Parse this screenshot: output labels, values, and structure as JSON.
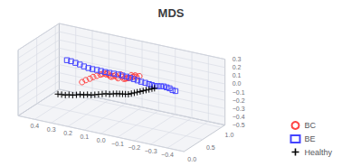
{
  "chart_data": {
    "type": "scatter3d",
    "title": "MDS",
    "series": [
      {
        "name": "BC",
        "color": "#ff4444",
        "marker": "circle",
        "values": [
          [
            -0.22,
            0.05,
            0.28
          ],
          [
            -0.2,
            0.06,
            0.26
          ],
          [
            -0.19,
            0.07,
            0.27
          ],
          [
            -0.18,
            0.08,
            0.25
          ],
          [
            -0.17,
            0.09,
            0.24
          ],
          [
            -0.16,
            0.1,
            0.25
          ],
          [
            -0.15,
            0.08,
            0.22
          ],
          [
            -0.14,
            0.09,
            0.21
          ],
          [
            -0.13,
            0.1,
            0.2
          ],
          [
            -0.12,
            0.11,
            0.19
          ],
          [
            -0.11,
            0.12,
            0.18
          ],
          [
            -0.1,
            0.12,
            0.2
          ],
          [
            -0.09,
            0.13,
            0.22
          ],
          [
            -0.08,
            0.1,
            0.18
          ],
          [
            -0.07,
            0.11,
            0.19
          ],
          [
            -0.06,
            0.12,
            0.2
          ],
          [
            -0.05,
            0.11,
            0.19
          ],
          [
            -0.04,
            0.1,
            0.18
          ],
          [
            -0.03,
            0.11,
            0.18
          ],
          [
            -0.02,
            0.12,
            0.19
          ],
          [
            -0.01,
            0.13,
            0.2
          ],
          [
            0.0,
            0.14,
            0.18
          ],
          [
            0.01,
            0.14,
            0.19
          ],
          [
            0.02,
            0.13,
            0.18
          ],
          [
            0.03,
            0.12,
            0.17
          ],
          [
            0.05,
            0.11,
            0.15
          ],
          [
            0.07,
            0.1,
            0.13
          ],
          [
            0.09,
            0.1,
            0.1
          ],
          [
            0.11,
            0.08,
            0.08
          ],
          [
            0.13,
            0.07,
            0.05
          ]
        ]
      },
      {
        "name": "BE",
        "color": "#4444ff",
        "marker": "square",
        "values": [
          [
            -0.28,
            0.75,
            -0.08
          ],
          [
            -0.26,
            0.76,
            -0.08
          ],
          [
            -0.24,
            0.77,
            -0.07
          ],
          [
            -0.22,
            0.78,
            -0.07
          ],
          [
            -0.2,
            0.79,
            -0.07
          ],
          [
            -0.18,
            0.8,
            -0.08
          ],
          [
            -0.16,
            0.81,
            -0.09
          ],
          [
            -0.14,
            0.82,
            -0.1
          ],
          [
            -0.12,
            0.83,
            -0.1
          ],
          [
            -0.1,
            0.84,
            -0.1
          ],
          [
            -0.08,
            0.83,
            -0.09
          ],
          [
            -0.06,
            0.81,
            -0.08
          ],
          [
            -0.04,
            0.8,
            -0.07
          ],
          [
            -0.02,
            0.79,
            -0.06
          ],
          [
            0.0,
            0.78,
            -0.05
          ],
          [
            0.02,
            0.77,
            -0.04
          ],
          [
            0.04,
            0.75,
            -0.03
          ],
          [
            0.06,
            0.73,
            -0.02
          ],
          [
            0.08,
            0.7,
            -0.01
          ],
          [
            0.1,
            0.67,
            0.0
          ],
          [
            0.12,
            0.64,
            0.01
          ],
          [
            0.14,
            0.62,
            0.02
          ],
          [
            0.16,
            0.6,
            0.03
          ],
          [
            0.18,
            0.57,
            0.04
          ],
          [
            0.2,
            0.55,
            0.05
          ],
          [
            0.22,
            0.52,
            0.07
          ],
          [
            0.24,
            0.5,
            0.09
          ],
          [
            0.26,
            0.47,
            0.11
          ],
          [
            0.28,
            0.44,
            0.13
          ],
          [
            0.3,
            0.42,
            0.14
          ]
        ]
      },
      {
        "name": "Healthy",
        "color": "#000000",
        "marker": "plus",
        "values": [
          [
            -0.12,
            0.9,
            -0.16
          ],
          [
            -0.1,
            0.92,
            -0.18
          ],
          [
            -0.08,
            0.93,
            -0.2
          ],
          [
            -0.06,
            0.94,
            -0.22
          ],
          [
            -0.04,
            0.95,
            -0.24
          ],
          [
            -0.02,
            0.96,
            -0.26
          ],
          [
            0.0,
            0.97,
            -0.28
          ],
          [
            0.02,
            0.98,
            -0.3
          ],
          [
            0.04,
            0.99,
            -0.32
          ],
          [
            0.06,
            1.0,
            -0.34
          ],
          [
            0.08,
            1.01,
            -0.35
          ],
          [
            0.1,
            1.02,
            -0.36
          ],
          [
            0.12,
            1.03,
            -0.37
          ],
          [
            0.14,
            1.04,
            -0.38
          ],
          [
            0.16,
            1.04,
            -0.39
          ],
          [
            0.18,
            1.03,
            -0.4
          ],
          [
            0.2,
            1.02,
            -0.4
          ],
          [
            0.22,
            1.01,
            -0.41
          ],
          [
            0.24,
            1.0,
            -0.42
          ],
          [
            0.26,
            0.99,
            -0.43
          ],
          [
            0.28,
            0.98,
            -0.44
          ],
          [
            0.3,
            0.97,
            -0.44
          ],
          [
            0.32,
            0.96,
            -0.45
          ],
          [
            0.34,
            0.95,
            -0.45
          ],
          [
            0.36,
            0.94,
            -0.46
          ],
          [
            0.38,
            0.93,
            -0.47
          ],
          [
            0.4,
            0.92,
            -0.47
          ],
          [
            0.42,
            0.91,
            -0.48
          ],
          [
            0.44,
            0.9,
            -0.48
          ],
          [
            0.46,
            0.89,
            -0.48
          ]
        ]
      }
    ],
    "xlim": [
      0.5,
      -0.5
    ],
    "ylim": [
      0.0,
      1.1
    ],
    "zlim": [
      -0.5,
      0.3
    ],
    "xticks": [
      0.4,
      0.3,
      0.2,
      0.1,
      {
        "value": 0.0,
        "label": "0.0"
      },
      {
        "value": -0.1,
        "label": "−0.1"
      },
      {
        "value": -0.2,
        "label": "−0.2"
      },
      {
        "value": -0.3,
        "label": "−0.3"
      },
      {
        "value": -0.4,
        "label": "−0.4"
      }
    ],
    "yticks": [
      {
        "value": 0.0,
        "label": "0.0"
      },
      0.5,
      {
        "value": 1.0,
        "label": "1.0"
      }
    ],
    "zticks": [
      {
        "value": -0.5,
        "label": "−0.5"
      },
      {
        "value": -0.4,
        "label": "−0.4"
      },
      {
        "value": -0.3,
        "label": "−0.3"
      },
      {
        "value": -0.2,
        "label": "−0.2"
      },
      {
        "value": -0.1,
        "label": "−0.1"
      },
      {
        "value": 0.0,
        "label": "0.0"
      },
      0.1,
      0.2,
      0.3
    ],
    "grid": true,
    "legend": "lower right"
  }
}
